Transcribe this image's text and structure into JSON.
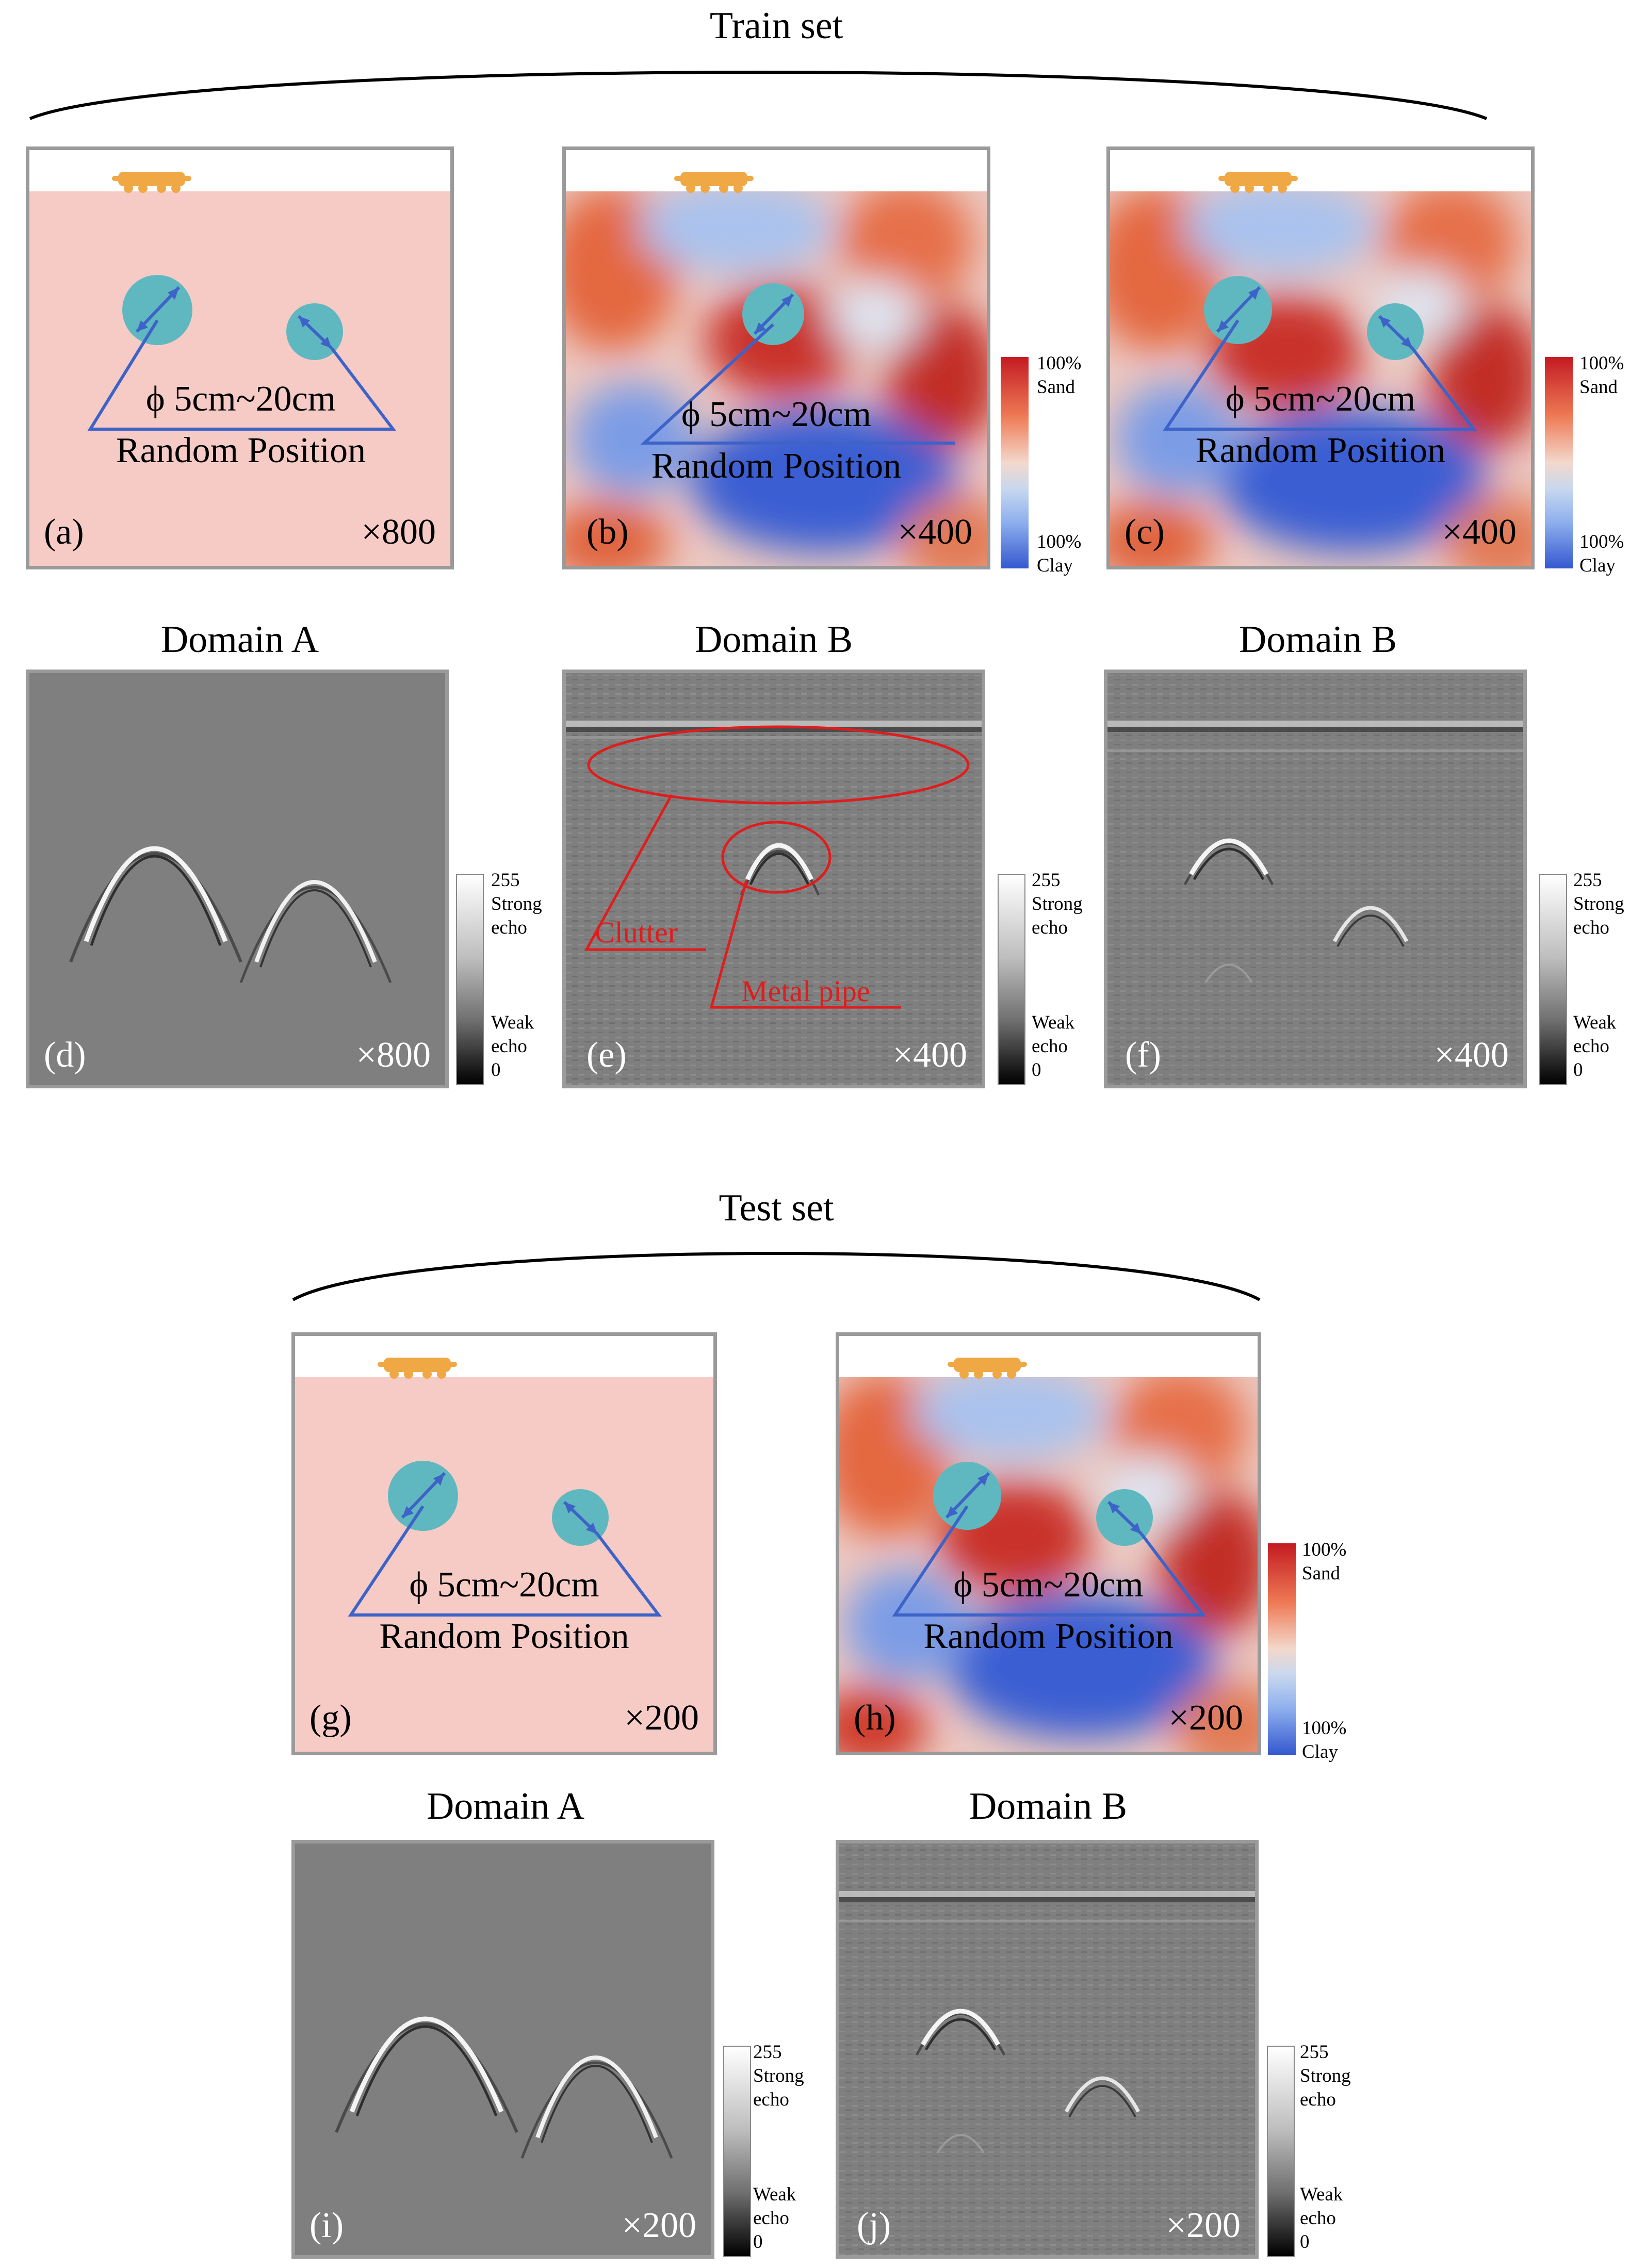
{
  "train": {
    "title": "Train set",
    "domain_d": "Domain A",
    "domain_e": "Domain B",
    "domain_f": "Domain B"
  },
  "test": {
    "title": "Test set",
    "domain_i": "Domain A",
    "domain_j": "Domain B"
  },
  "panels": {
    "a": {
      "label": "(a)",
      "count": "×800"
    },
    "b": {
      "label": "(b)",
      "count": "×400"
    },
    "c": {
      "label": "(c)",
      "count": "×400"
    },
    "d": {
      "label": "(d)",
      "count": "×800"
    },
    "e": {
      "label": "(e)",
      "count": "×400"
    },
    "f": {
      "label": "(f)",
      "count": "×400"
    },
    "g": {
      "label": "(g)",
      "count": "×200"
    },
    "h": {
      "label": "(h)",
      "count": "×200"
    },
    "i": {
      "label": "(i)",
      "count": "×200"
    },
    "j": {
      "label": "(j)",
      "count": "×200"
    }
  },
  "model": {
    "diameter": "ϕ 5cm~20cm",
    "position": "Random Position"
  },
  "annotations": {
    "clutter": "Clutter",
    "metal_pipe": "Metal pipe"
  },
  "soil_colorbar": {
    "top_pct": "100%",
    "top_name": "Sand",
    "bottom_pct": "100%",
    "bottom_name": "Clay"
  },
  "echo_colorbar": {
    "top_value": "255",
    "top_line1": "Strong",
    "top_line2": "echo",
    "bottom_line1": "Weak",
    "bottom_line2": "echo",
    "bottom_value": "0"
  },
  "colors": {
    "homogeneous_soil": "#f6cbc6",
    "pipe": "#5fb8bf",
    "arrow": "#3e63c8",
    "cart": "#f0a845",
    "radar_gray": "#7f7f7f",
    "annotation_red": "#e01c1c",
    "frame": "#9a9a9a"
  }
}
